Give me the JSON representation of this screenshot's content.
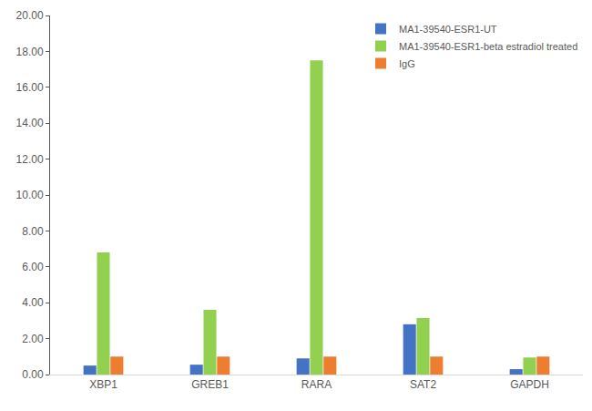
{
  "chart_data": {
    "type": "bar",
    "categories": [
      "XBP1",
      "GREB1",
      "RARA",
      "SAT2",
      "GAPDH"
    ],
    "series": [
      {
        "name": "MA1-39540-ESR1-UT",
        "color": "#4472c4",
        "values": [
          0.5,
          0.55,
          0.9,
          2.8,
          0.3
        ]
      },
      {
        "name": "MA1-39540-ESR1-beta estradiol treated",
        "color": "#92d050",
        "values": [
          6.8,
          3.6,
          17.5,
          3.15,
          0.95
        ]
      },
      {
        "name": "IgG",
        "color": "#ed7d31",
        "values": [
          1,
          1,
          1,
          1,
          1
        ]
      }
    ],
    "ylim": [
      0,
      20
    ],
    "yticks": [
      {
        "value": 0,
        "label": "0.00"
      },
      {
        "value": 2,
        "label": "2.00"
      },
      {
        "value": 4,
        "label": "4.00"
      },
      {
        "value": 6,
        "label": "6.00"
      },
      {
        "value": 8,
        "label": "8.00"
      },
      {
        "value": 10,
        "label": "10.00"
      },
      {
        "value": 12,
        "label": "12.00"
      },
      {
        "value": 14,
        "label": "14.00"
      },
      {
        "value": 16,
        "label": "16.00"
      },
      {
        "value": 18,
        "label": "18.00"
      },
      {
        "value": 20,
        "label": "20.00"
      }
    ],
    "grid": false,
    "legend": "top-right"
  }
}
